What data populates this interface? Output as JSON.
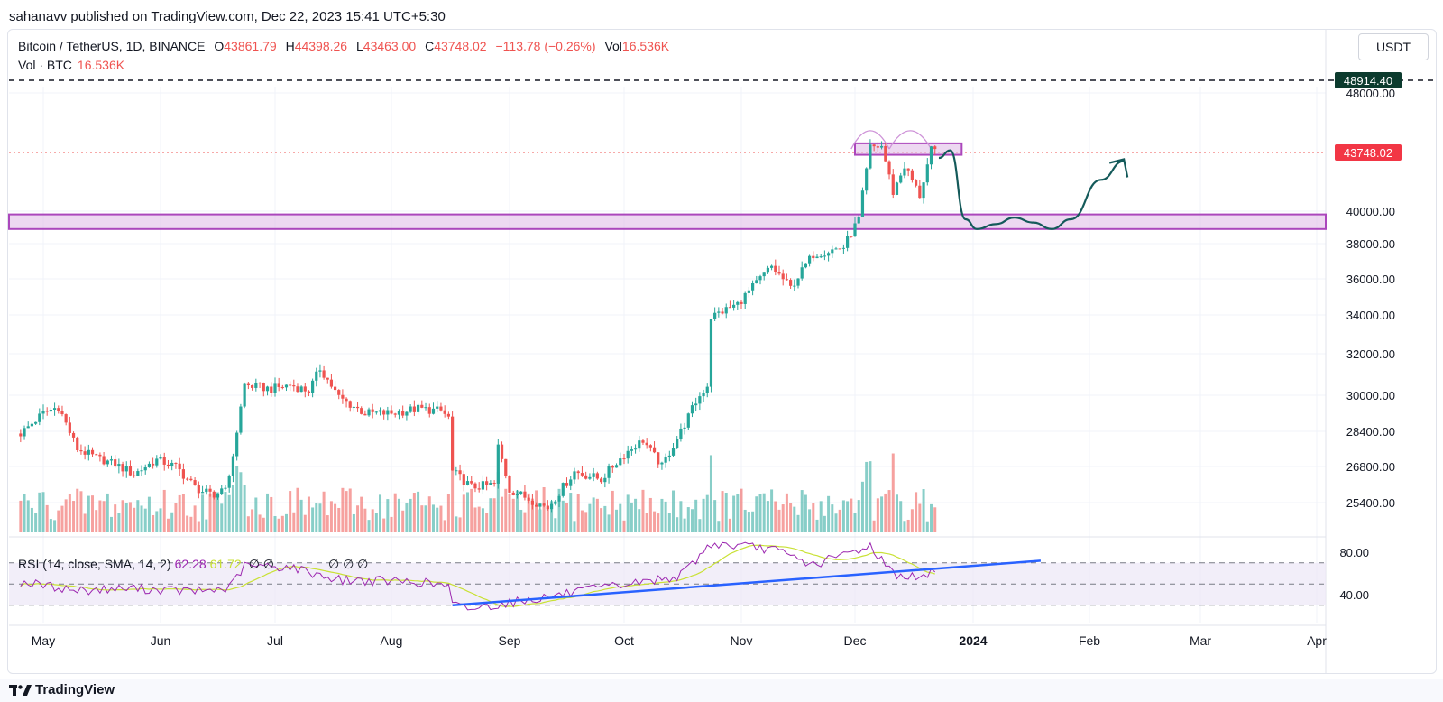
{
  "header": {
    "published": "sahanavv published on TradingView.com, Dec 22, 2023 15:41 UTC+5:30"
  },
  "legend": {
    "symbol": "Bitcoin / TetherUS, 1D, BINANCE",
    "open_label": "O",
    "open": "43861.79",
    "high_label": "H",
    "high": "44398.26",
    "low_label": "L",
    "low": "43463.00",
    "close_label": "C",
    "close": "43748.02",
    "change": "−113.78 (−0.26%)",
    "vol_label": "Vol",
    "vol": "16.536K",
    "vol_line_label": "Vol · BTC",
    "vol_line_value": "16.536K"
  },
  "rsi_legend": {
    "label": "RSI (14, close, SMA, 14, 2)",
    "rsi": "62.28",
    "sma": "61.72",
    "extra1": "∅ ∅",
    "extra2": "∅ ∅ ∅"
  },
  "currency_button": "USDT",
  "footer": {
    "logo": "TradingView"
  },
  "colors": {
    "up": "#26a69a",
    "down": "#ef5350",
    "zone": "#e1bee7",
    "zone_border": "#ab47bc",
    "rsi": "#9c27b0",
    "rsi_sma": "#c9e135",
    "trendline": "#2962ff",
    "projection": "#145a5a",
    "price_tag": "#f23645",
    "level_tag": "#0c3b2e"
  },
  "chart_data": {
    "type": "candlestick",
    "symbol": "Bitcoin / TetherUS",
    "timeframe": "1D",
    "exchange": "BINANCE",
    "last_price": 43748.02,
    "marked_level": 48914.4,
    "resistance_zone": [
      43600,
      44400
    ],
    "support_zone": [
      38900,
      39800
    ],
    "price_ticks": [
      48000,
      40000,
      38000,
      36000,
      34000,
      32000,
      30000,
      28400,
      26800,
      25400
    ],
    "price_tick_labels": [
      "48000.00",
      "40000.00",
      "38000.00",
      "36000.00",
      "34000.00",
      "32000.00",
      "30000.00",
      "28400.00",
      "26800.00",
      "25400.00"
    ],
    "price_tag_labels": {
      "level": "48914.40",
      "last": "43748.02"
    },
    "rsi_ticks": [
      80,
      40
    ],
    "rsi_tick_labels": [
      "80.00",
      "40.00"
    ],
    "rsi_bands": [
      70,
      50,
      30
    ],
    "time_labels": [
      "May",
      "Jun",
      "Jul",
      "Aug",
      "Sep",
      "Oct",
      "Nov",
      "Dec",
      "2024",
      "Feb",
      "Mar",
      "Apr"
    ],
    "time_dates": [
      "2023-05-01",
      "2023-06-01",
      "2023-07-01",
      "2023-08-01",
      "2023-09-01",
      "2023-10-01",
      "2023-11-01",
      "2023-12-01",
      "2024-01-01",
      "2024-02-01",
      "2024-03-01",
      "2024-04-01"
    ],
    "close_path": [
      [
        "2023-04-25",
        28300
      ],
      [
        "2023-05-01",
        29200
      ],
      [
        "2023-05-05",
        29500
      ],
      [
        "2023-05-10",
        27600
      ],
      [
        "2023-05-15",
        27200
      ],
      [
        "2023-05-20",
        26900
      ],
      [
        "2023-05-25",
        26500
      ],
      [
        "2023-05-31",
        27100
      ],
      [
        "2023-06-05",
        26800
      ],
      [
        "2023-06-10",
        26000
      ],
      [
        "2023-06-15",
        25600
      ],
      [
        "2023-06-19",
        26300
      ],
      [
        "2023-06-21",
        28400
      ],
      [
        "2023-06-23",
        30500
      ],
      [
        "2023-06-30",
        30300
      ],
      [
        "2023-07-05",
        30500
      ],
      [
        "2023-07-10",
        30200
      ],
      [
        "2023-07-13",
        31300
      ],
      [
        "2023-07-18",
        29900
      ],
      [
        "2023-07-25",
        29200
      ],
      [
        "2023-08-01",
        29200
      ],
      [
        "2023-08-08",
        29400
      ],
      [
        "2023-08-14",
        29300
      ],
      [
        "2023-08-16",
        29000
      ],
      [
        "2023-08-17",
        26600
      ],
      [
        "2023-08-22",
        26000
      ],
      [
        "2023-08-28",
        26100
      ],
      [
        "2023-08-29",
        27700
      ],
      [
        "2023-09-01",
        25900
      ],
      [
        "2023-09-11",
        25200
      ],
      [
        "2023-09-18",
        26600
      ],
      [
        "2023-09-25",
        26300
      ],
      [
        "2023-10-02",
        27500
      ],
      [
        "2023-10-06",
        28000
      ],
      [
        "2023-10-11",
        26800
      ],
      [
        "2023-10-16",
        28400
      ],
      [
        "2023-10-20",
        29700
      ],
      [
        "2023-10-23",
        30500
      ],
      [
        "2023-10-24",
        33900
      ],
      [
        "2023-10-31",
        34600
      ],
      [
        "2023-11-09",
        36700
      ],
      [
        "2023-11-14",
        35500
      ],
      [
        "2023-11-20",
        37400
      ],
      [
        "2023-11-28",
        37800
      ],
      [
        "2023-12-02",
        39500
      ],
      [
        "2023-12-05",
        44100
      ],
      [
        "2023-12-08",
        44200
      ],
      [
        "2023-12-11",
        41200
      ],
      [
        "2023-12-14",
        42900
      ],
      [
        "2023-12-18",
        41000
      ],
      [
        "2023-12-21",
        43900
      ],
      [
        "2023-12-22",
        43748
      ]
    ],
    "projection_path": [
      [
        "2023-12-23",
        43400
      ],
      [
        "2023-12-26",
        43900
      ],
      [
        "2023-12-30",
        39500
      ],
      [
        "2024-01-02",
        38900
      ],
      [
        "2024-01-07",
        39200
      ],
      [
        "2024-01-12",
        39600
      ],
      [
        "2024-01-17",
        39300
      ],
      [
        "2024-01-22",
        38900
      ],
      [
        "2024-01-27",
        39500
      ],
      [
        "2024-02-04",
        42000
      ],
      [
        "2024-02-10",
        43200
      ]
    ],
    "rsi_trendline": [
      [
        "2023-08-17",
        30
      ],
      [
        "2024-01-19",
        72
      ]
    ],
    "rsi_values": [
      [
        "2023-04-25",
        52
      ],
      [
        "2023-05-10",
        44
      ],
      [
        "2023-05-25",
        46
      ],
      [
        "2023-06-10",
        43
      ],
      [
        "2023-06-19",
        46
      ],
      [
        "2023-06-23",
        67
      ],
      [
        "2023-07-05",
        66
      ],
      [
        "2023-07-18",
        54
      ],
      [
        "2023-08-08",
        52
      ],
      [
        "2023-08-16",
        48
      ],
      [
        "2023-08-17",
        30
      ],
      [
        "2023-08-22",
        27
      ],
      [
        "2023-09-11",
        38
      ],
      [
        "2023-09-25",
        46
      ],
      [
        "2023-10-06",
        52
      ],
      [
        "2023-10-16",
        58
      ],
      [
        "2023-10-24",
        88
      ],
      [
        "2023-11-09",
        83
      ],
      [
        "2023-11-20",
        68
      ],
      [
        "2023-12-05",
        86
      ],
      [
        "2023-12-11",
        60
      ],
      [
        "2023-12-18",
        55
      ],
      [
        "2023-12-22",
        62
      ]
    ],
    "volume_note": "daily volume bars at bottom of price pane"
  }
}
